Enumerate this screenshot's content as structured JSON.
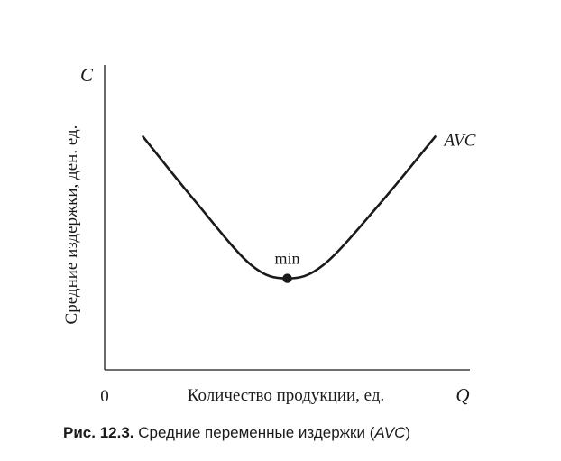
{
  "chart_data": {
    "type": "line",
    "xlabel": "Количество продукции, ед.",
    "ylabel": "Средние издержки, ден. ед.",
    "x_axis_symbol": "Q",
    "y_axis_symbol": "C",
    "origin_label": "0",
    "series": [
      {
        "name": "AVC",
        "shape": "U-shaped",
        "x": [
          0.105,
          0.25,
          0.4,
          0.5,
          0.6,
          0.75,
          0.905
        ],
        "y": [
          0.765,
          0.55,
          0.345,
          0.3,
          0.345,
          0.54,
          0.765
        ]
      }
    ],
    "annotations": [
      {
        "text": "min",
        "x": 0.5,
        "y": 0.3,
        "marker": "dot"
      }
    ],
    "xlim": [
      0,
      1
    ],
    "ylim": [
      0,
      1
    ],
    "grid": false,
    "legend": "none",
    "colors": {
      "line": "#1a1a1a",
      "axes": "#1a1a1a"
    }
  },
  "caption": {
    "prefix": "Рис. 12.3.",
    "text": " Средние переменные издержки (",
    "italic": "AVC",
    "suffix": ")"
  }
}
